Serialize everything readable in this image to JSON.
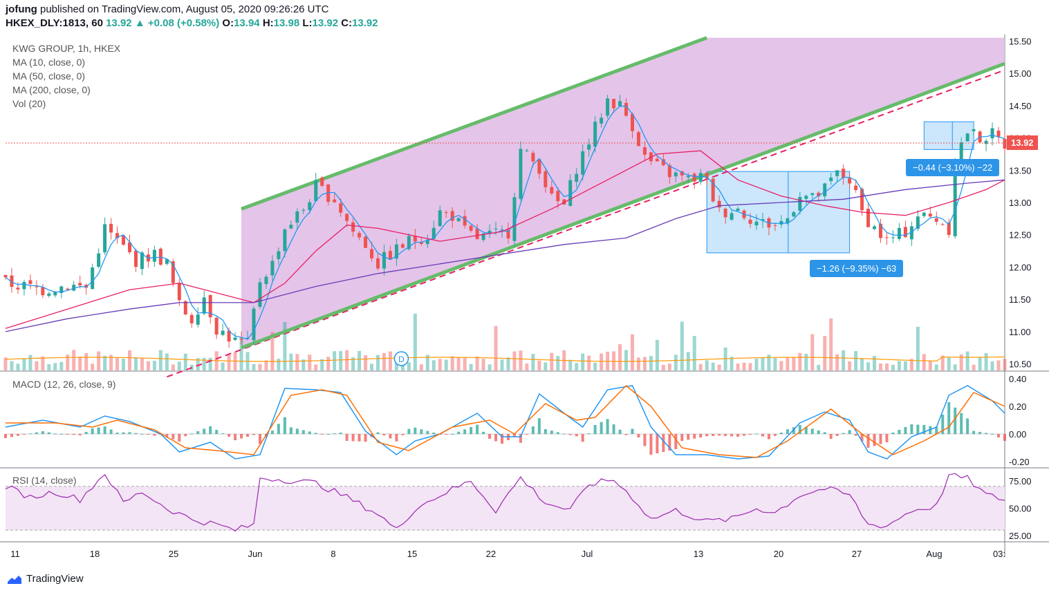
{
  "header": {
    "user": "jofung",
    "published_text": "published on TradingView.com, August 05, 2020 09:26:26 UTC",
    "symbol": "HKEX_DLY:1813, 60",
    "last": "13.92",
    "change": "+0.08 (+0.58%)",
    "open_label": "O:",
    "open": "13.94",
    "high_label": "H:",
    "high": "13.98",
    "low_label": "L:",
    "low": "13.92",
    "close_label": "C:",
    "close": "13.92"
  },
  "legend": {
    "title": "KWG GROUP, 1h, HKEX",
    "ma10": "MA (10, close, 0)",
    "ma50": "MA (50, close, 0)",
    "ma200": "MA (200, close, 0)",
    "vol": "Vol (20)",
    "macd": "MACD (12, 26, close, 9)",
    "rsi": "RSI (14, close)"
  },
  "annotations": {
    "upper_box": "−0.44 (−3.10%) −22",
    "lower_box": "−1.26 (−9.35%) −63",
    "price_tag": "13.92",
    "dividend_marker": "D"
  },
  "footer": {
    "brand": "TradingView"
  },
  "colors": {
    "up": "#26a69a",
    "down": "#ef5350",
    "ma10": "#2196f3",
    "ma50": "#e91e63",
    "ma200": "#673ab7",
    "channel_fill": "#e1bee7",
    "channel_line": "#66bb6a",
    "measure_fill": "#bbdefb",
    "macd": "#2196f3",
    "signal": "#ff6d00",
    "rsi": "#9c27b0"
  },
  "chart_data": {
    "type": "candlestick",
    "x_ticks": [
      "11",
      "18",
      "25",
      "Jun",
      "8",
      "15",
      "22",
      "Jul",
      "13",
      "20",
      "27",
      "Aug",
      "03:"
    ],
    "price_axis": {
      "ticks": [
        10.5,
        11.0,
        11.5,
        12.0,
        12.5,
        13.0,
        13.5,
        14.0,
        14.5,
        15.0,
        15.5
      ],
      "range": [
        10.4,
        15.6
      ]
    },
    "macd_axis": {
      "ticks": [
        -0.2,
        0.0,
        0.2,
        0.4
      ],
      "range": [
        -0.24,
        0.44
      ]
    },
    "rsi_axis": {
      "ticks": [
        25,
        50,
        75
      ],
      "range": [
        20,
        85
      ],
      "band": [
        30,
        70
      ]
    },
    "price_path": [
      [
        0,
        11.75
      ],
      [
        3,
        11.7
      ],
      [
        6,
        11.65
      ],
      [
        10,
        11.72
      ],
      [
        13,
        11.68
      ],
      [
        16,
        12.6
      ],
      [
        19,
        12.3
      ],
      [
        21,
        12.1
      ],
      [
        24,
        12.2
      ],
      [
        26,
        12.05
      ],
      [
        28,
        11.4
      ],
      [
        30,
        11.2
      ],
      [
        32,
        11.55
      ],
      [
        34,
        11.05
      ],
      [
        37,
        10.85
      ],
      [
        39,
        10.8
      ],
      [
        41,
        11.8
      ],
      [
        43,
        12.05
      ],
      [
        45,
        12.6
      ],
      [
        48,
        12.9
      ],
      [
        50,
        13.25
      ],
      [
        53,
        13.05
      ],
      [
        56,
        12.55
      ],
      [
        58,
        12.35
      ],
      [
        60,
        12.05
      ],
      [
        62,
        12.2
      ],
      [
        65,
        12.4
      ],
      [
        68,
        12.5
      ],
      [
        70,
        12.85
      ],
      [
        72,
        12.8
      ],
      [
        74,
        12.55
      ],
      [
        76,
        12.45
      ],
      [
        79,
        12.5
      ],
      [
        81,
        12.55
      ],
      [
        83,
        13.8
      ],
      [
        86,
        13.55
      ],
      [
        88,
        13.05
      ],
      [
        90,
        12.95
      ],
      [
        92,
        13.55
      ],
      [
        95,
        14.15
      ],
      [
        97,
        14.6
      ],
      [
        99,
        14.5
      ],
      [
        101,
        14.2
      ],
      [
        103,
        13.7
      ],
      [
        105,
        13.55
      ],
      [
        107,
        13.45
      ],
      [
        110,
        13.35
      ],
      [
        112,
        13.4
      ],
      [
        113,
        13.3
      ],
      [
        115,
        12.85
      ],
      [
        118,
        12.9
      ],
      [
        121,
        12.7
      ],
      [
        124,
        12.65
      ],
      [
        126,
        12.75
      ],
      [
        128,
        13.15
      ],
      [
        130,
        13.05
      ],
      [
        132,
        13.2
      ],
      [
        134,
        13.45
      ],
      [
        136,
        13.35
      ],
      [
        138,
        12.85
      ],
      [
        140,
        12.6
      ],
      [
        142,
        12.4
      ],
      [
        145,
        12.55
      ],
      [
        147,
        12.8
      ],
      [
        150,
        12.75
      ],
      [
        152,
        12.6
      ],
      [
        153,
        13.7
      ],
      [
        155,
        14.1
      ],
      [
        157,
        14.0
      ],
      [
        159,
        14.05
      ],
      [
        161,
        13.9
      ]
    ],
    "ma50_path": [
      [
        0,
        11.05
      ],
      [
        10,
        11.35
      ],
      [
        20,
        11.65
      ],
      [
        28,
        11.75
      ],
      [
        36,
        11.55
      ],
      [
        40,
        11.45
      ],
      [
        45,
        11.75
      ],
      [
        50,
        12.25
      ],
      [
        55,
        12.65
      ],
      [
        60,
        12.6
      ],
      [
        70,
        12.4
      ],
      [
        80,
        12.55
      ],
      [
        88,
        12.9
      ],
      [
        95,
        13.25
      ],
      [
        105,
        13.75
      ],
      [
        112,
        13.8
      ],
      [
        118,
        13.35
      ],
      [
        125,
        13.1
      ],
      [
        132,
        12.95
      ],
      [
        138,
        12.85
      ],
      [
        145,
        12.8
      ],
      [
        152,
        13.0
      ],
      [
        158,
        13.2
      ],
      [
        161,
        13.35
      ]
    ],
    "ma200_path": [
      [
        0,
        11.0
      ],
      [
        10,
        11.2
      ],
      [
        20,
        11.35
      ],
      [
        28,
        11.45
      ],
      [
        40,
        11.45
      ],
      [
        50,
        11.7
      ],
      [
        60,
        11.9
      ],
      [
        70,
        12.05
      ],
      [
        80,
        12.2
      ],
      [
        90,
        12.35
      ],
      [
        100,
        12.45
      ],
      [
        108,
        12.75
      ],
      [
        115,
        12.95
      ],
      [
        125,
        13.0
      ],
      [
        135,
        13.05
      ],
      [
        145,
        13.2
      ],
      [
        155,
        13.3
      ],
      [
        161,
        13.35
      ]
    ],
    "channel": {
      "upper": [
        [
          38,
          12.9
        ],
        [
          113,
          15.55
        ]
      ],
      "lower": [
        [
          38,
          10.75
        ],
        [
          161,
          15.15
        ]
      ],
      "dashed": [
        [
          26,
          10.3
        ],
        [
          161,
          15.05
        ]
      ]
    },
    "measure_boxes": [
      {
        "x": [
          113,
          136
        ],
        "y": [
          12.22,
          13.48
        ],
        "label": "−1.26 (−9.35%) −63"
      },
      {
        "x": [
          148,
          156
        ],
        "y": [
          13.82,
          14.25
        ],
        "label": "−0.44 (−3.10%) −22"
      }
    ],
    "macd_path": [
      [
        0,
        0.05
      ],
      [
        6,
        0.1
      ],
      [
        12,
        0.05
      ],
      [
        16,
        0.13
      ],
      [
        20,
        0.09
      ],
      [
        25,
        0.0
      ],
      [
        28,
        -0.13
      ],
      [
        33,
        -0.06
      ],
      [
        37,
        -0.18
      ],
      [
        41,
        -0.15
      ],
      [
        45,
        0.33
      ],
      [
        50,
        0.32
      ],
      [
        54,
        0.3
      ],
      [
        58,
        0.02
      ],
      [
        63,
        -0.15
      ],
      [
        66,
        -0.05
      ],
      [
        70,
        0.0
      ],
      [
        76,
        0.15
      ],
      [
        80,
        -0.02
      ],
      [
        83,
        -0.02
      ],
      [
        86,
        0.29
      ],
      [
        90,
        0.15
      ],
      [
        93,
        0.05
      ],
      [
        97,
        0.32
      ],
      [
        101,
        0.35
      ],
      [
        104,
        0.05
      ],
      [
        108,
        -0.15
      ],
      [
        113,
        -0.15
      ],
      [
        118,
        -0.18
      ],
      [
        123,
        -0.16
      ],
      [
        128,
        0.08
      ],
      [
        132,
        0.16
      ],
      [
        136,
        0.1
      ],
      [
        139,
        -0.13
      ],
      [
        142,
        -0.18
      ],
      [
        146,
        -0.02
      ],
      [
        150,
        0.05
      ],
      [
        152,
        0.28
      ],
      [
        155,
        0.35
      ],
      [
        159,
        0.24
      ],
      [
        161,
        0.15
      ]
    ],
    "signal_path": [
      [
        0,
        0.08
      ],
      [
        8,
        0.08
      ],
      [
        14,
        0.05
      ],
      [
        18,
        0.1
      ],
      [
        24,
        0.03
      ],
      [
        29,
        -0.1
      ],
      [
        34,
        -0.12
      ],
      [
        40,
        -0.15
      ],
      [
        46,
        0.28
      ],
      [
        51,
        0.32
      ],
      [
        55,
        0.28
      ],
      [
        60,
        -0.06
      ],
      [
        65,
        -0.12
      ],
      [
        72,
        0.05
      ],
      [
        78,
        0.1
      ],
      [
        82,
        0.0
      ],
      [
        87,
        0.22
      ],
      [
        92,
        0.1
      ],
      [
        95,
        0.12
      ],
      [
        100,
        0.35
      ],
      [
        104,
        0.2
      ],
      [
        109,
        -0.1
      ],
      [
        115,
        -0.15
      ],
      [
        121,
        -0.17
      ],
      [
        126,
        -0.05
      ],
      [
        133,
        0.18
      ],
      [
        138,
        0.0
      ],
      [
        143,
        -0.15
      ],
      [
        148,
        -0.05
      ],
      [
        152,
        0.05
      ],
      [
        156,
        0.3
      ],
      [
        161,
        0.2
      ]
    ],
    "rsi_path": [
      [
        0,
        70
      ],
      [
        4,
        60
      ],
      [
        8,
        65
      ],
      [
        12,
        58
      ],
      [
        16,
        82
      ],
      [
        19,
        55
      ],
      [
        22,
        65
      ],
      [
        26,
        50
      ],
      [
        30,
        40
      ],
      [
        34,
        35
      ],
      [
        37,
        30
      ],
      [
        40,
        35
      ],
      [
        41,
        78
      ],
      [
        45,
        76
      ],
      [
        50,
        73
      ],
      [
        55,
        60
      ],
      [
        60,
        45
      ],
      [
        63,
        30
      ],
      [
        66,
        50
      ],
      [
        70,
        62
      ],
      [
        75,
        75
      ],
      [
        79,
        48
      ],
      [
        83,
        78
      ],
      [
        87,
        55
      ],
      [
        91,
        48
      ],
      [
        94,
        72
      ],
      [
        98,
        76
      ],
      [
        101,
        60
      ],
      [
        104,
        40
      ],
      [
        108,
        48
      ],
      [
        113,
        38
      ],
      [
        117,
        40
      ],
      [
        121,
        50
      ],
      [
        124,
        46
      ],
      [
        128,
        62
      ],
      [
        132,
        68
      ],
      [
        136,
        62
      ],
      [
        139,
        35
      ],
      [
        142,
        34
      ],
      [
        146,
        48
      ],
      [
        150,
        52
      ],
      [
        152,
        80
      ],
      [
        155,
        77
      ],
      [
        158,
        62
      ],
      [
        161,
        58
      ]
    ]
  }
}
